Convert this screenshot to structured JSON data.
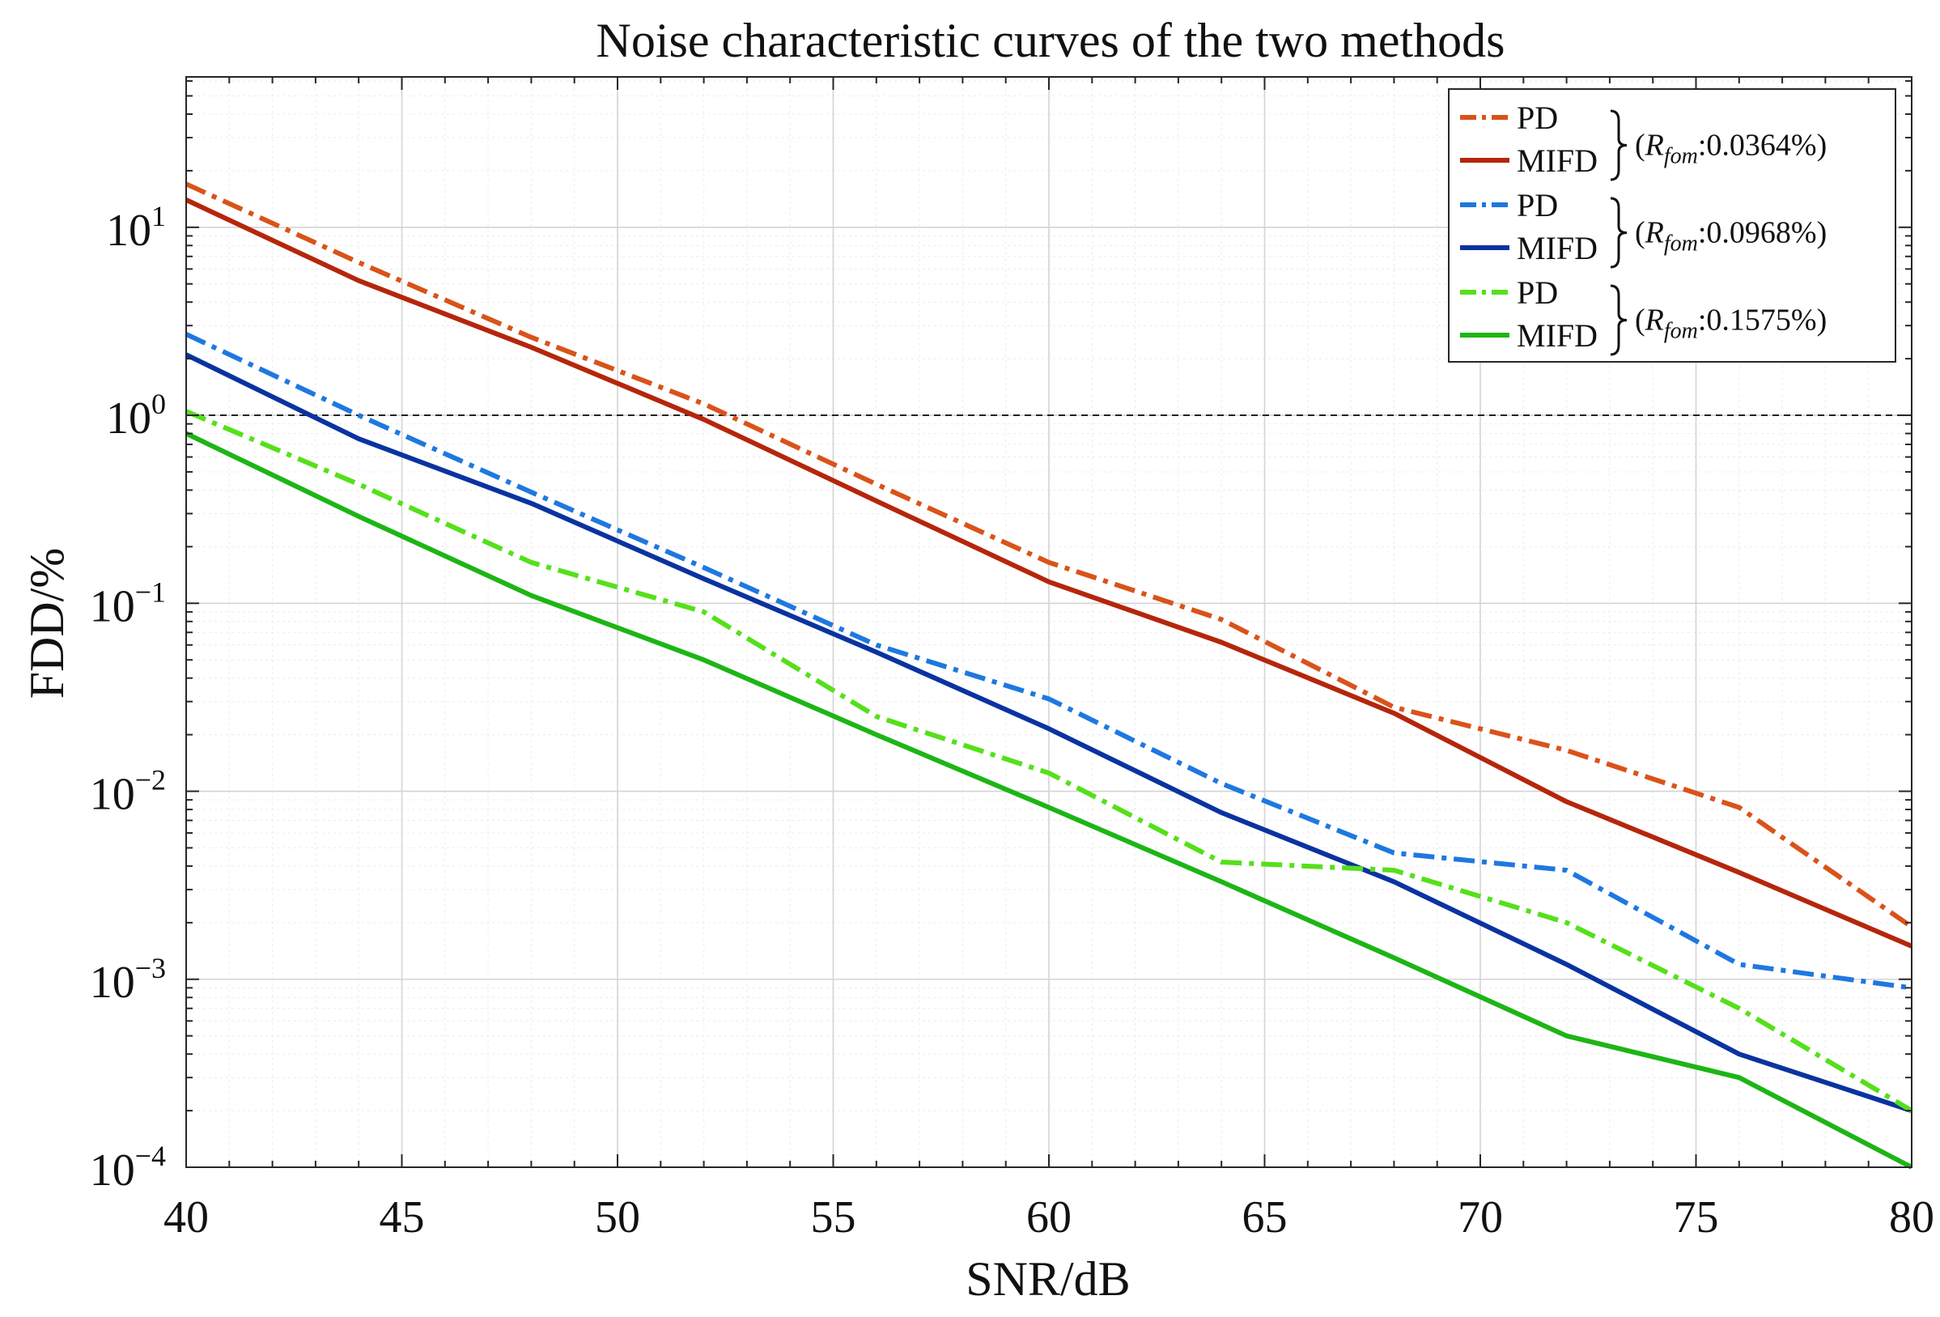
{
  "chart_data": {
    "type": "line",
    "title": "Noise characteristic curves of the two methods",
    "xlabel": "SNR/dB",
    "ylabel": "FDD/%",
    "yscale": "log",
    "xlim": [
      40,
      80
    ],
    "ylim_exp": [
      -4,
      1.8
    ],
    "xticks": [
      40,
      45,
      50,
      55,
      60,
      65,
      70,
      75,
      80
    ],
    "yticks": [
      {
        "base": "10",
        "exp": "1",
        "value": 10
      },
      {
        "base": "10",
        "exp": "0",
        "value": 1
      },
      {
        "base": "10",
        "exp": "−1",
        "value": 0.1
      },
      {
        "base": "10",
        "exp": "−2",
        "value": 0.01
      },
      {
        "base": "10",
        "exp": "−3",
        "value": 0.001
      },
      {
        "base": "10",
        "exp": "−4",
        "value": 0.0001
      }
    ],
    "grid": true,
    "reference_line": {
      "y": 1,
      "style": "dashed",
      "color": "#222222"
    },
    "x": [
      40,
      44,
      48,
      52,
      56,
      60,
      64,
      68,
      72,
      76,
      80
    ],
    "series": [
      {
        "name": "PD",
        "group": 0,
        "dash": true,
        "color": "#D95319",
        "values": [
          17,
          6.5,
          2.6,
          1.15,
          0.43,
          0.165,
          0.082,
          0.028,
          0.0165,
          0.0082,
          0.0019
        ]
      },
      {
        "name": "MIFD",
        "group": 0,
        "dash": false,
        "color": "#B5260B",
        "values": [
          14,
          5.2,
          2.3,
          0.95,
          0.35,
          0.13,
          0.062,
          0.026,
          0.0088,
          0.0037,
          0.0015
        ]
      },
      {
        "name": "PD",
        "group": 1,
        "dash": true,
        "color": "#1E78E0",
        "values": [
          2.7,
          1.0,
          0.39,
          0.155,
          0.06,
          0.031,
          0.011,
          0.0047,
          0.0038,
          0.0012,
          0.0009
        ]
      },
      {
        "name": "MIFD",
        "group": 1,
        "dash": false,
        "color": "#0A33A0",
        "values": [
          2.1,
          0.75,
          0.34,
          0.135,
          0.055,
          0.0215,
          0.0077,
          0.0033,
          0.0012,
          0.0004,
          0.0002
        ]
      },
      {
        "name": "PD",
        "group": 2,
        "dash": true,
        "color": "#55E01A",
        "values": [
          1.05,
          0.43,
          0.165,
          0.09,
          0.025,
          0.0125,
          0.0042,
          0.0038,
          0.002,
          0.0007,
          0.0002
        ]
      },
      {
        "name": "MIFD",
        "group": 2,
        "dash": false,
        "color": "#1DB516",
        "values": [
          0.8,
          0.29,
          0.11,
          0.05,
          0.02,
          0.0082,
          0.0033,
          0.0013,
          0.0005,
          0.0003,
          0.0001
        ]
      }
    ],
    "legend": {
      "position": "top-right",
      "groups": [
        {
          "prefix": "(",
          "R": "R",
          "sub": "fom",
          "value": ":0.0364%)"
        },
        {
          "prefix": "(",
          "R": "R",
          "sub": "fom",
          "value": ":0.0968%)"
        },
        {
          "prefix": "(",
          "R": "R",
          "sub": "fom",
          "value": ":0.1575%)"
        }
      ]
    }
  }
}
